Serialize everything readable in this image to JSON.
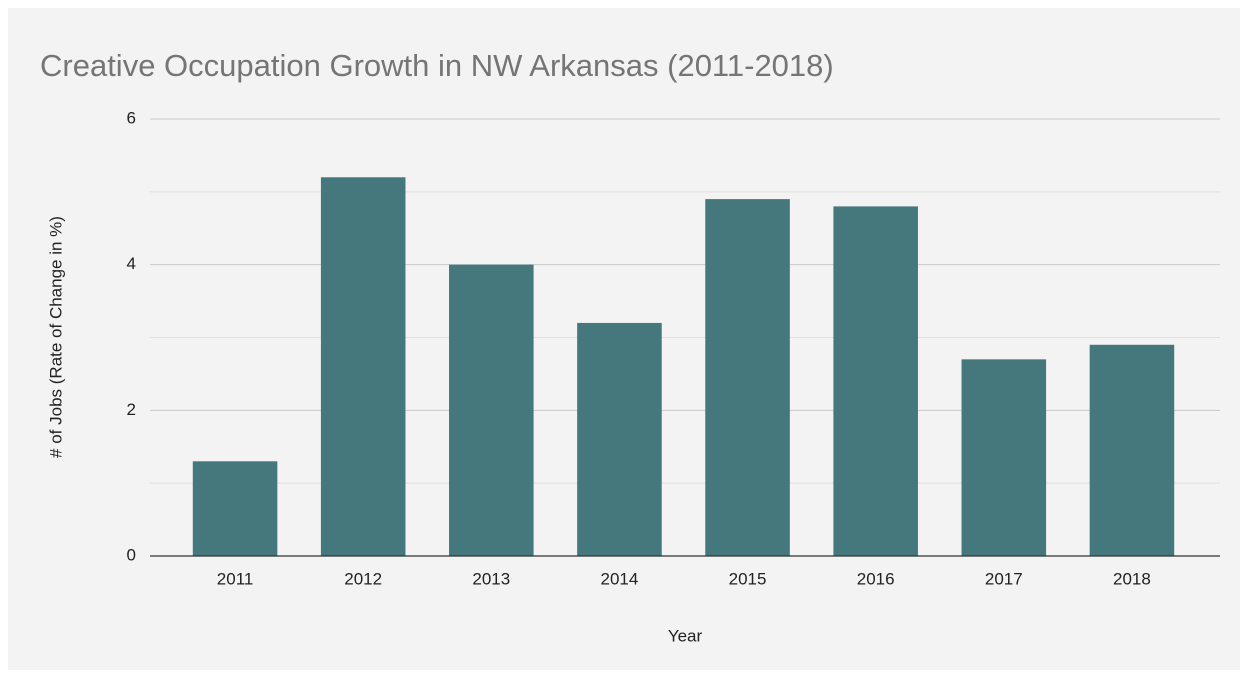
{
  "chart_data": {
    "type": "bar",
    "title": "Creative Occupation Growth in NW Arkansas (2011-2018)",
    "x_label": "Year",
    "y_label": "# of Jobs (Rate of Change in %)",
    "categories": [
      "2011",
      "2012",
      "2013",
      "2014",
      "2015",
      "2016",
      "2017",
      "2018"
    ],
    "values": [
      1.3,
      5.2,
      4.0,
      3.2,
      4.9,
      4.8,
      2.7,
      2.9
    ],
    "color": "#44787d",
    "ylim": [
      0,
      6
    ],
    "yticks": [
      0,
      2,
      4,
      6
    ],
    "minor_yticks": [
      1,
      3,
      5
    ],
    "grid": true
  }
}
